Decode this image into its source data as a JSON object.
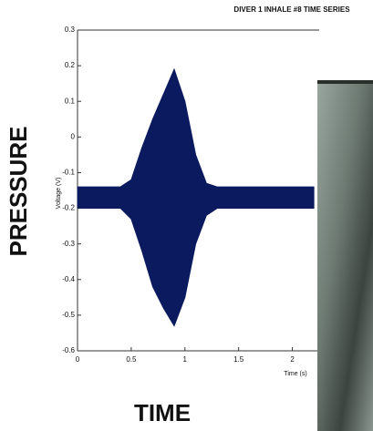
{
  "chart_data": {
    "type": "area",
    "title": "DIVER 1 INHALE #8 TIME SERIES",
    "ylabel": "Voltage (V)",
    "xlabel": "Time (s)",
    "side_label": "PRESSURE",
    "bottom_label": "TIME",
    "x": [
      0,
      0.1,
      0.2,
      0.3,
      0.4,
      0.5,
      0.6,
      0.7,
      0.8,
      0.9,
      1.0,
      1.1,
      1.2,
      1.3,
      1.4,
      1.5,
      1.6,
      1.7,
      1.8,
      1.9,
      2.0,
      2.1,
      2.2
    ],
    "upper": [
      -0.14,
      -0.14,
      -0.14,
      -0.14,
      -0.14,
      -0.12,
      -0.03,
      0.05,
      0.12,
      0.19,
      0.1,
      -0.05,
      -0.13,
      -0.14,
      -0.14,
      -0.14,
      -0.14,
      -0.14,
      -0.14,
      -0.14,
      -0.14,
      -0.14,
      -0.14
    ],
    "lower": [
      -0.2,
      -0.2,
      -0.2,
      -0.2,
      -0.2,
      -0.23,
      -0.32,
      -0.42,
      -0.48,
      -0.53,
      -0.45,
      -0.3,
      -0.22,
      -0.2,
      -0.2,
      -0.2,
      -0.2,
      -0.2,
      -0.2,
      -0.2,
      -0.2,
      -0.2,
      -0.2
    ],
    "color": "#0b1a5e",
    "xlim": [
      0,
      2.25
    ],
    "ylim": [
      -0.6,
      0.3
    ],
    "xticks": [
      0,
      0.5,
      1,
      1.5,
      2
    ],
    "yticks": [
      -0.6,
      -0.5,
      -0.4,
      -0.3,
      -0.2,
      -0.1,
      0,
      0.1,
      0.2,
      0.3
    ]
  }
}
